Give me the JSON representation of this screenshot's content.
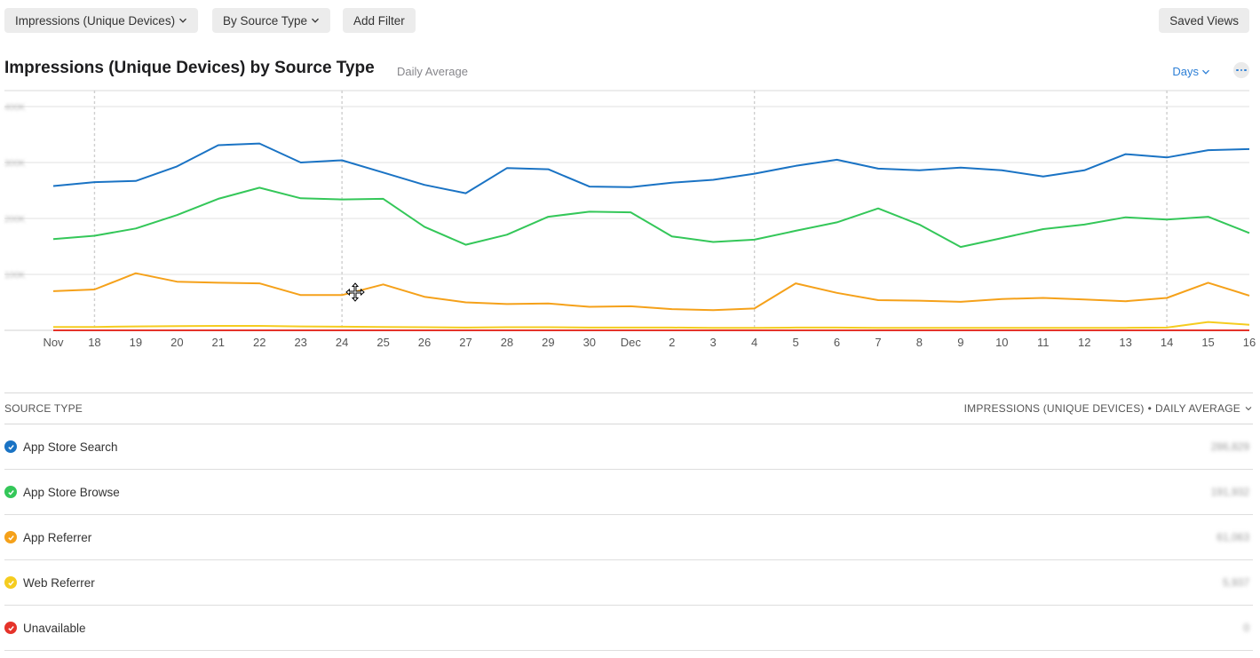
{
  "toolbar": {
    "metric_label": "Impressions (Unique Devices)",
    "group_label": "By Source Type",
    "filter_label": "Add Filter",
    "saved_views_label": "Saved Views"
  },
  "header": {
    "title": "Impressions (Unique Devices) by Source Type",
    "subtitle": "Daily Average",
    "interval_label": "Days"
  },
  "chart_data": {
    "type": "line",
    "title": "Impressions (Unique Devices) by Source Type",
    "subtitle": "Daily Average",
    "x": [
      "Nov",
      "18",
      "19",
      "20",
      "21",
      "22",
      "23",
      "24",
      "25",
      "26",
      "27",
      "28",
      "29",
      "30",
      "Dec",
      "2",
      "3",
      "4",
      "5",
      "6",
      "7",
      "8",
      "9",
      "10",
      "11",
      "12",
      "13",
      "14",
      "15",
      "16"
    ],
    "y_ticks": [
      "400K",
      "300K",
      "200K",
      "100K"
    ],
    "ylim": [
      0,
      400000
    ],
    "week_markers": [
      "18",
      "24",
      "4",
      "14"
    ],
    "grid": true,
    "series": [
      {
        "name": "App Store Search",
        "color": "#1a73c4",
        "values": [
          258000,
          265000,
          267000,
          293000,
          331000,
          334000,
          300000,
          304000,
          282000,
          260000,
          245000,
          290000,
          288000,
          257000,
          256000,
          264000,
          269000,
          280000,
          294000,
          305000,
          289000,
          286000,
          291000,
          286000,
          275000,
          286000,
          315000,
          309000,
          322000,
          324000
        ]
      },
      {
        "name": "App Store Browse",
        "color": "#34c759",
        "values": [
          163000,
          169000,
          182000,
          206000,
          235000,
          255000,
          236000,
          234000,
          235000,
          185000,
          153000,
          171000,
          203000,
          212000,
          211000,
          168000,
          158000,
          162000,
          178000,
          193000,
          218000,
          189000,
          149000,
          165000,
          181000,
          189000,
          202000,
          198000,
          203000,
          174000
        ]
      },
      {
        "name": "App Referrer",
        "color": "#f5a11a",
        "values": [
          70000,
          73000,
          102000,
          87000,
          85000,
          84000,
          63000,
          63000,
          82000,
          60000,
          50000,
          47000,
          48000,
          42000,
          43000,
          38000,
          36000,
          39000,
          84000,
          67000,
          54000,
          53000,
          51000,
          56000,
          58000,
          55000,
          52000,
          58000,
          85000,
          62000
        ]
      },
      {
        "name": "Web Referrer",
        "color": "#f5cc1f",
        "values": [
          6000,
          6000,
          7000,
          7500,
          8000,
          8000,
          7000,
          6500,
          6000,
          5500,
          5000,
          5500,
          5500,
          5000,
          5000,
          5000,
          4500,
          4500,
          5000,
          5000,
          4500,
          4500,
          4500,
          4500,
          4500,
          4500,
          4500,
          5000,
          15000,
          10000
        ]
      },
      {
        "name": "Unavailable",
        "color": "#e5332a",
        "values": [
          0,
          0,
          0,
          0,
          0,
          0,
          0,
          0,
          0,
          0,
          0,
          0,
          0,
          0,
          0,
          0,
          0,
          0,
          0,
          0,
          0,
          0,
          0,
          0,
          0,
          0,
          0,
          0,
          0,
          0
        ]
      }
    ]
  },
  "table": {
    "col_source": "SOURCE TYPE",
    "col_metric": "IMPRESSIONS (UNIQUE DEVICES)",
    "col_separator": "•",
    "col_agg": "DAILY AVERAGE",
    "rows": [
      {
        "label": "App Store Search",
        "value": "286,829",
        "color": "#1a73c4"
      },
      {
        "label": "App Store Browse",
        "value": "191,932",
        "color": "#34c759"
      },
      {
        "label": "App Referrer",
        "value": "61,063",
        "color": "#f5a11a"
      },
      {
        "label": "Web Referrer",
        "value": "5,937",
        "color": "#f5cc1f"
      },
      {
        "label": "Unavailable",
        "value": "0",
        "color": "#e5332a"
      }
    ]
  },
  "icons": {
    "dropdown": "chevron-down-icon",
    "more": "ellipsis-icon",
    "row_check": "checkmark-circle-icon",
    "cursor": "move-cursor-icon"
  }
}
